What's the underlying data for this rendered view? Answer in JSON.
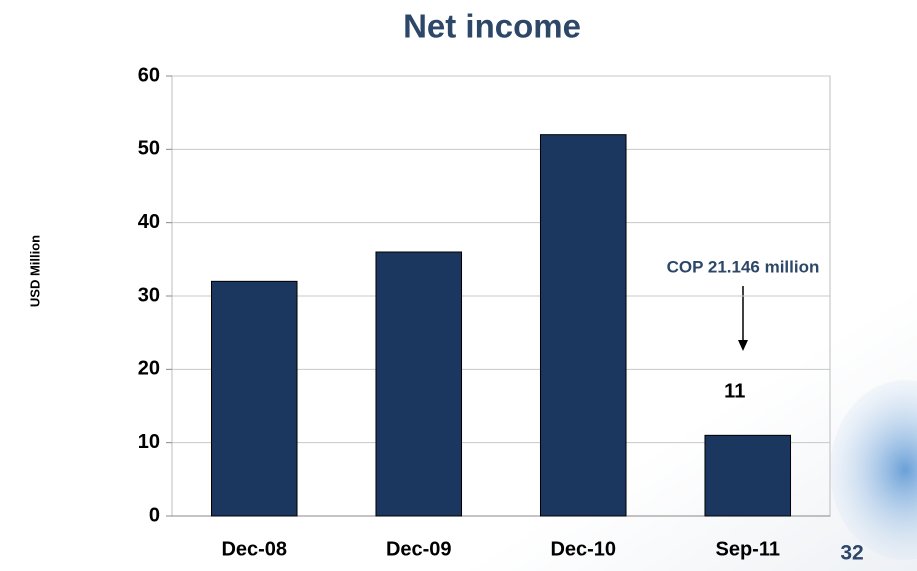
{
  "chart_data": {
    "type": "bar",
    "title": "Net income",
    "y_label": "USD Million",
    "categories": [
      "Dec-08",
      "Dec-09",
      "Dec-10",
      "Sep-11"
    ],
    "values": [
      32,
      36,
      52,
      11
    ],
    "color": "#1b365f",
    "ylim": [
      0,
      60
    ],
    "yticks": [
      0,
      10,
      20,
      30,
      40,
      50,
      60
    ],
    "grid": true,
    "annotation": "COP 21.146 million"
  },
  "page_number": "32"
}
